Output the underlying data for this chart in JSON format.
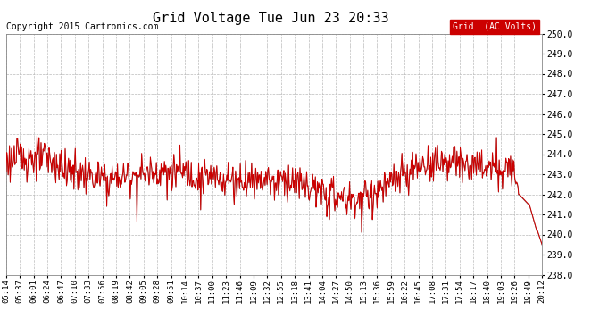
{
  "title": "Grid Voltage Tue Jun 23 20:33",
  "copyright": "Copyright 2015 Cartronics.com",
  "legend_label": "Grid  (AC Volts)",
  "legend_bg": "#cc0000",
  "legend_fg": "#ffffff",
  "line_color_red": "#cc0000",
  "line_color_dark": "#222222",
  "background_color": "#ffffff",
  "grid_color": "#bbbbbb",
  "ylim": [
    238.0,
    250.0
  ],
  "yticks": [
    238.0,
    239.0,
    240.0,
    241.0,
    242.0,
    243.0,
    244.0,
    245.0,
    246.0,
    247.0,
    248.0,
    249.0,
    250.0
  ],
  "xtick_labels": [
    "05:14",
    "05:37",
    "06:01",
    "06:24",
    "06:47",
    "07:10",
    "07:33",
    "07:56",
    "08:19",
    "08:42",
    "09:05",
    "09:28",
    "09:51",
    "10:14",
    "10:37",
    "11:00",
    "11:23",
    "11:46",
    "12:09",
    "12:32",
    "12:55",
    "13:18",
    "13:41",
    "14:04",
    "14:27",
    "14:50",
    "15:13",
    "15:36",
    "15:59",
    "16:22",
    "16:45",
    "17:08",
    "17:31",
    "17:54",
    "18:17",
    "18:40",
    "19:03",
    "19:26",
    "19:49",
    "20:12"
  ],
  "title_fontsize": 11,
  "tick_fontsize": 7,
  "copyright_fontsize": 7,
  "legend_fontsize": 7
}
